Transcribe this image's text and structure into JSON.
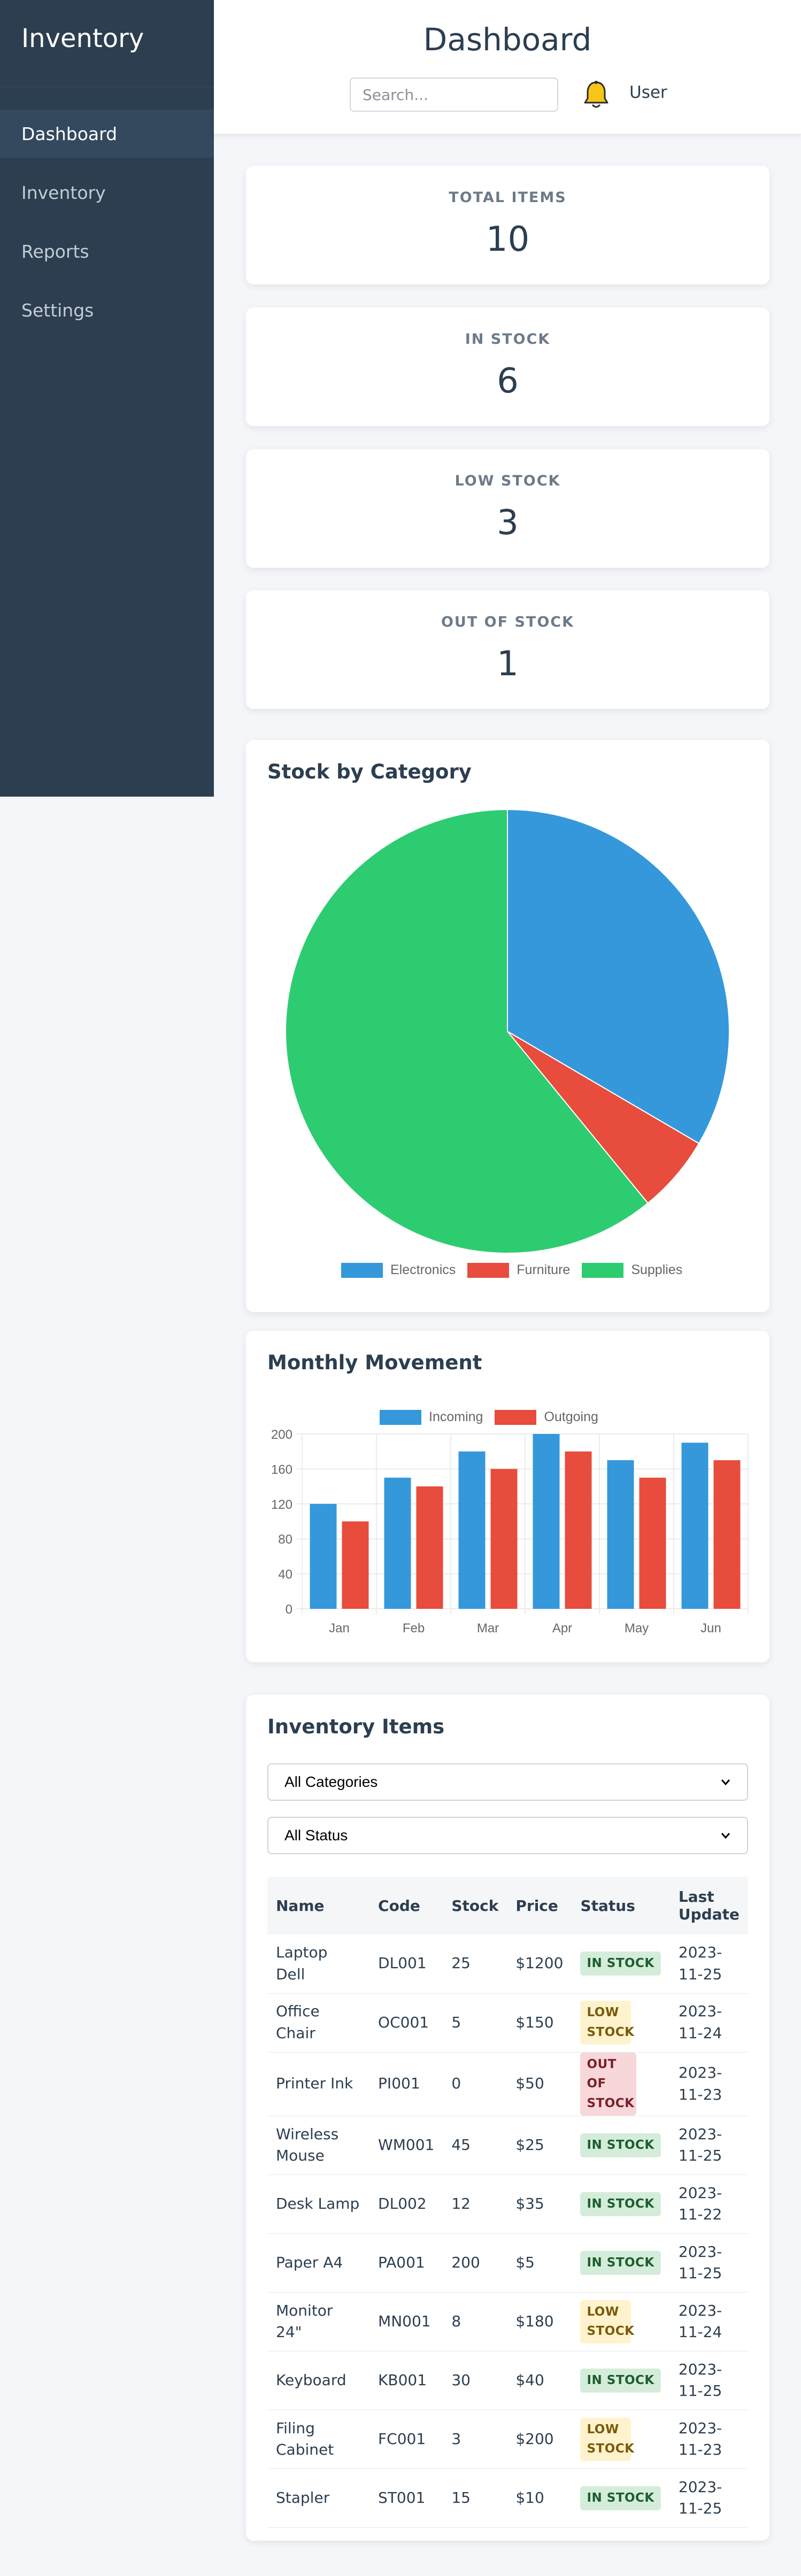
{
  "sidebar": {
    "brand": "Inventory",
    "items": [
      {
        "label": "Dashboard"
      },
      {
        "label": "Inventory"
      },
      {
        "label": "Reports"
      },
      {
        "label": "Settings"
      }
    ]
  },
  "header": {
    "title": "Dashboard",
    "search_placeholder": "Search...",
    "user_label": "User"
  },
  "stats": [
    {
      "label": "Total Items",
      "value": "10"
    },
    {
      "label": "In Stock",
      "value": "6"
    },
    {
      "label": "Low Stock",
      "value": "3"
    },
    {
      "label": "Out of Stock",
      "value": "1"
    }
  ],
  "colors": {
    "sidebar": "#2c3e50",
    "electronics": "#3498db",
    "furniture": "#e74c3c",
    "supplies": "#2ecc71"
  },
  "category_card": {
    "title": "Stock by Category"
  },
  "movement_card": {
    "title": "Monthly Movement"
  },
  "chart_data": [
    {
      "type": "pie",
      "title": "Stock by Category",
      "categories": [
        "Electronics",
        "Furniture",
        "Supplies"
      ],
      "values": [
        118,
        20,
        215
      ],
      "colors": [
        "#3498db",
        "#e74c3c",
        "#2ecc71"
      ],
      "legend": "bottom"
    },
    {
      "type": "bar",
      "title": "Monthly Movement",
      "categories": [
        "Jan",
        "Feb",
        "Mar",
        "Apr",
        "May",
        "Jun"
      ],
      "series": [
        {
          "name": "Incoming",
          "values": [
            120,
            150,
            180,
            200,
            170,
            190
          ],
          "color": "#3498db"
        },
        {
          "name": "Outgoing",
          "values": [
            100,
            140,
            160,
            180,
            150,
            170
          ],
          "color": "#e74c3c"
        }
      ],
      "ylim": [
        0,
        200
      ],
      "yticks": [
        0,
        40,
        80,
        120,
        160,
        200
      ],
      "grid": true,
      "legend": "top"
    }
  ],
  "inventory": {
    "title": "Inventory Items",
    "category_filter": "All Categories",
    "status_filter": "All Status",
    "columns": [
      "Name",
      "Code",
      "Stock",
      "Price",
      "Status",
      "Last Update"
    ],
    "rows": [
      {
        "name": "Laptop Dell",
        "code": "DL001",
        "stock": "25",
        "price": "$1200",
        "status": "In Stock",
        "status_type": "in",
        "updated": "2023-11-25"
      },
      {
        "name": "Office Chair",
        "code": "OC001",
        "stock": "5",
        "price": "$150",
        "status": "Low Stock",
        "status_type": "low",
        "updated": "2023-11-24"
      },
      {
        "name": "Printer Ink",
        "code": "PI001",
        "stock": "0",
        "price": "$50",
        "status": "Out of Stock",
        "status_type": "out",
        "updated": "2023-11-23"
      },
      {
        "name": "Wireless Mouse",
        "code": "WM001",
        "stock": "45",
        "price": "$25",
        "status": "In Stock",
        "status_type": "in",
        "updated": "2023-11-25"
      },
      {
        "name": "Desk Lamp",
        "code": "DL002",
        "stock": "12",
        "price": "$35",
        "status": "In Stock",
        "status_type": "in",
        "updated": "2023-11-22"
      },
      {
        "name": "Paper A4",
        "code": "PA001",
        "stock": "200",
        "price": "$5",
        "status": "In Stock",
        "status_type": "in",
        "updated": "2023-11-25"
      },
      {
        "name": "Monitor 24\"",
        "code": "MN001",
        "stock": "8",
        "price": "$180",
        "status": "Low Stock",
        "status_type": "low",
        "updated": "2023-11-24"
      },
      {
        "name": "Keyboard",
        "code": "KB001",
        "stock": "30",
        "price": "$40",
        "status": "In Stock",
        "status_type": "in",
        "updated": "2023-11-25"
      },
      {
        "name": "Filing Cabinet",
        "code": "FC001",
        "stock": "3",
        "price": "$200",
        "status": "Low Stock",
        "status_type": "low",
        "updated": "2023-11-23"
      },
      {
        "name": "Stapler",
        "code": "ST001",
        "stock": "15",
        "price": "$10",
        "status": "In Stock",
        "status_type": "in",
        "updated": "2023-11-25"
      }
    ]
  }
}
